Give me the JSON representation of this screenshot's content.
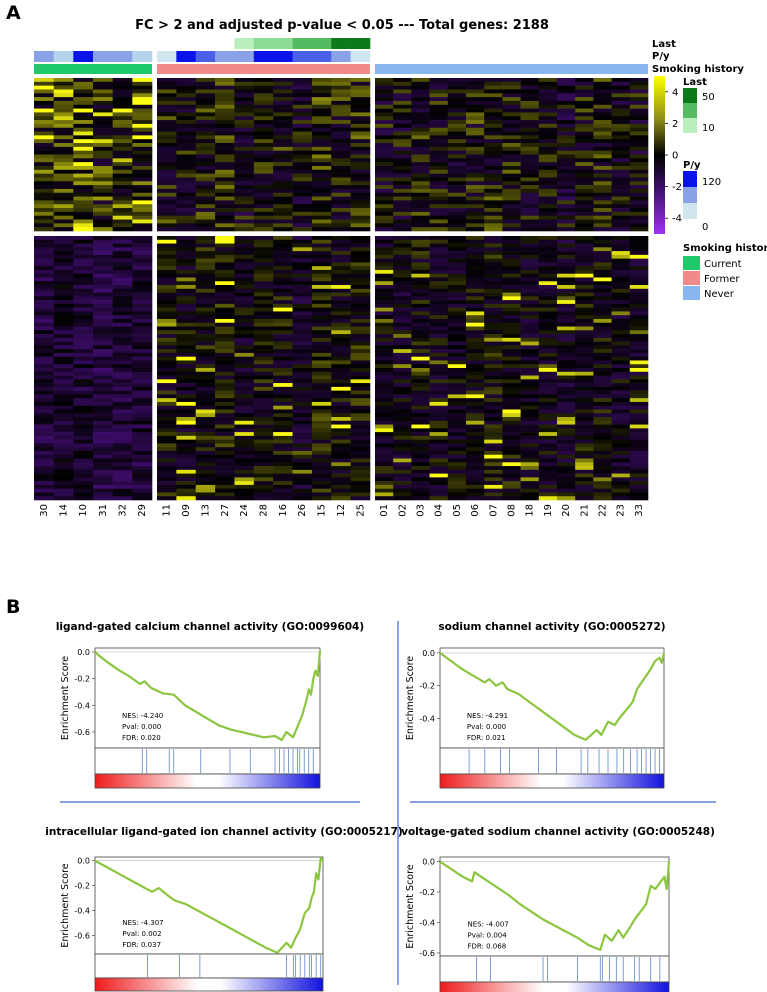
{
  "panels": {
    "a_label": "A",
    "b_label": "B"
  },
  "heatmap": {
    "title": "FC > 2 and adjusted p-value < 0.05 --- Total genes: 2188",
    "track_labels": [
      "Last",
      "P/y",
      "Smoking history"
    ],
    "colorbar": {
      "title": "",
      "ticks": [
        4,
        2,
        0,
        -2,
        -4
      ]
    },
    "legend_last": {
      "title": "Last",
      "ticks": [
        "50",
        "10"
      ]
    },
    "legend_py": {
      "title": "P/y",
      "ticks": [
        "120",
        "0"
      ]
    },
    "legend_smoking": {
      "title": "Smoking history",
      "items": [
        "Current",
        "Former",
        "Never"
      ]
    },
    "colors": {
      "current": "#1ec96a",
      "former": "#f2898a",
      "never": "#88b6f0",
      "high": "#ffff1a",
      "low": "#7a1fd6"
    }
  },
  "chart_data": [
    {
      "type": "heatmap",
      "title": "FC > 2 and adjusted p-value < 0.05 --- Total genes: 2188",
      "groups": [
        {
          "name": "Current",
          "samples": [
            "30",
            "14",
            "10",
            "31",
            "32",
            "29"
          ]
        },
        {
          "name": "Former",
          "samples": [
            "11",
            "09",
            "13",
            "27",
            "24",
            "28",
            "16",
            "26",
            "15",
            "12",
            "25"
          ]
        },
        {
          "name": "Never",
          "samples": [
            "01",
            "02",
            "03",
            "04",
            "05",
            "06",
            "07",
            "08",
            "18",
            "19",
            "20",
            "21",
            "22",
            "23",
            "33"
          ]
        }
      ],
      "colorbar_range": [
        -5,
        5
      ],
      "colorbar_ticks": [
        4,
        2,
        0,
        -2,
        -4
      ]
    },
    {
      "type": "line",
      "title": "ligand-gated calcium channel activity (GO:0099604)",
      "ylabel": "Enrichment Score",
      "yticks": [
        "0.0",
        "-0.2",
        "-0.4",
        "-0.6"
      ],
      "ylim": [
        -0.72,
        0.03
      ],
      "x": [
        0,
        0.02,
        0.05,
        0.1,
        0.15,
        0.2,
        0.22,
        0.25,
        0.3,
        0.35,
        0.4,
        0.45,
        0.5,
        0.55,
        0.6,
        0.65,
        0.7,
        0.75,
        0.8,
        0.83,
        0.85,
        0.88,
        0.9,
        0.92,
        0.94,
        0.95,
        0.96,
        0.97,
        0.98,
        0.99,
        1.0
      ],
      "y": [
        0,
        -0.03,
        -0.07,
        -0.13,
        -0.18,
        -0.24,
        -0.22,
        -0.27,
        -0.31,
        -0.32,
        -0.4,
        -0.45,
        -0.5,
        -0.55,
        -0.58,
        -0.6,
        -0.62,
        -0.64,
        -0.63,
        -0.66,
        -0.6,
        -0.64,
        -0.56,
        -0.48,
        -0.36,
        -0.28,
        -0.32,
        -0.2,
        -0.14,
        -0.18,
        0.01
      ],
      "hits": [
        0.21,
        0.23,
        0.33,
        0.35,
        0.47,
        0.6,
        0.69,
        0.8,
        0.82,
        0.84,
        0.86,
        0.88,
        0.9,
        0.91,
        0.93,
        0.95,
        0.97
      ],
      "stats": {
        "nes": "NES:  -4.240",
        "pval": "Pval:  0.000",
        "fdr": "FDR:  0.020"
      }
    },
    {
      "type": "line",
      "title": "sodium channel activity (GO:0005272)",
      "ylabel": "Enrichment Score",
      "yticks": [
        "0.0",
        "-0.2",
        "-0.4"
      ],
      "ylim": [
        -0.58,
        0.03
      ],
      "x": [
        0,
        0.05,
        0.1,
        0.15,
        0.2,
        0.22,
        0.25,
        0.28,
        0.3,
        0.35,
        0.4,
        0.45,
        0.5,
        0.55,
        0.6,
        0.65,
        0.7,
        0.72,
        0.75,
        0.78,
        0.8,
        0.83,
        0.86,
        0.88,
        0.9,
        0.92,
        0.94,
        0.96,
        0.98,
        0.99,
        1.0
      ],
      "y": [
        0,
        -0.05,
        -0.1,
        -0.14,
        -0.18,
        -0.16,
        -0.2,
        -0.18,
        -0.22,
        -0.25,
        -0.3,
        -0.35,
        -0.4,
        -0.45,
        -0.5,
        -0.53,
        -0.47,
        -0.5,
        -0.42,
        -0.44,
        -0.4,
        -0.35,
        -0.3,
        -0.22,
        -0.18,
        -0.14,
        -0.1,
        -0.05,
        -0.03,
        -0.06,
        0.0
      ],
      "hits": [
        0.13,
        0.2,
        0.27,
        0.31,
        0.44,
        0.52,
        0.63,
        0.66,
        0.71,
        0.75,
        0.79,
        0.82,
        0.85,
        0.88,
        0.9,
        0.92,
        0.94,
        0.96,
        0.98
      ],
      "stats": {
        "nes": "NES:  -4.291",
        "pval": "Pval:  0.000",
        "fdr": "FDR:  0.021"
      }
    },
    {
      "type": "line",
      "title": "intracellular ligand-gated ion channel activity (GO:0005217)",
      "ylabel": "Enrichment Score",
      "yticks": [
        "0.0",
        "-0.2",
        "-0.4",
        "-0.6"
      ],
      "ylim": [
        -0.75,
        0.03
      ],
      "x": [
        0,
        0.05,
        0.1,
        0.15,
        0.2,
        0.25,
        0.28,
        0.32,
        0.35,
        0.4,
        0.45,
        0.5,
        0.55,
        0.6,
        0.65,
        0.7,
        0.75,
        0.8,
        0.84,
        0.86,
        0.88,
        0.9,
        0.92,
        0.94,
        0.95,
        0.96,
        0.97,
        0.98,
        0.99,
        1.0
      ],
      "y": [
        0,
        -0.05,
        -0.1,
        -0.15,
        -0.2,
        -0.25,
        -0.22,
        -0.28,
        -0.32,
        -0.35,
        -0.4,
        -0.45,
        -0.5,
        -0.55,
        -0.6,
        -0.65,
        -0.7,
        -0.74,
        -0.66,
        -0.7,
        -0.62,
        -0.55,
        -0.42,
        -0.38,
        -0.3,
        -0.25,
        -0.1,
        -0.15,
        0.02,
        0.0
      ],
      "hits": [
        0.23,
        0.37,
        0.46,
        0.84,
        0.87,
        0.88,
        0.9,
        0.92,
        0.94,
        0.95,
        0.97,
        0.99
      ],
      "stats": {
        "nes": "NES:  -4.307",
        "pval": "Pval:  0.002",
        "fdr": "FDR:  0.037"
      }
    },
    {
      "type": "line",
      "title": "voltage-gated sodium channel activity (GO:0005248)",
      "ylabel": "Enrichment Score",
      "yticks": [
        "0.0",
        "-0.2",
        "-0.4",
        "-0.6"
      ],
      "ylim": [
        -0.62,
        0.03
      ],
      "x": [
        0,
        0.05,
        0.1,
        0.14,
        0.15,
        0.2,
        0.25,
        0.3,
        0.35,
        0.4,
        0.45,
        0.5,
        0.55,
        0.6,
        0.65,
        0.7,
        0.72,
        0.75,
        0.78,
        0.8,
        0.83,
        0.85,
        0.88,
        0.9,
        0.92,
        0.94,
        0.96,
        0.98,
        0.99,
        1.0
      ],
      "y": [
        0,
        -0.05,
        -0.1,
        -0.13,
        -0.07,
        -0.12,
        -0.17,
        -0.22,
        -0.28,
        -0.33,
        -0.38,
        -0.42,
        -0.46,
        -0.5,
        -0.55,
        -0.58,
        -0.48,
        -0.52,
        -0.45,
        -0.5,
        -0.43,
        -0.38,
        -0.32,
        -0.28,
        -0.16,
        -0.18,
        -0.14,
        -0.1,
        -0.18,
        0.0
      ],
      "hits": [
        0.16,
        0.22,
        0.45,
        0.47,
        0.6,
        0.7,
        0.71,
        0.74,
        0.77,
        0.8,
        0.85,
        0.87,
        0.92,
        0.96
      ],
      "stats": {
        "nes": "NES:  -4.007",
        "pval": "Pval:  0.004",
        "fdr": "FDR:  0.068"
      }
    }
  ]
}
